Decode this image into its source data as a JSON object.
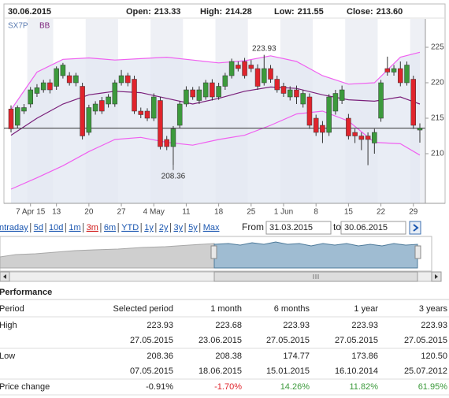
{
  "chart_data": {
    "type": "candlestick",
    "name": "SX7P",
    "x": [
      "2015-03-31",
      "2015-04-01",
      "2015-04-02",
      "2015-04-07",
      "2015-04-08",
      "2015-04-09",
      "2015-04-10",
      "2015-04-13",
      "2015-04-14",
      "2015-04-15",
      "2015-04-16",
      "2015-04-17",
      "2015-04-20",
      "2015-04-21",
      "2015-04-22",
      "2015-04-23",
      "2015-04-24",
      "2015-04-27",
      "2015-04-28",
      "2015-04-29",
      "2015-04-30",
      "2015-05-01",
      "2015-05-04",
      "2015-05-05",
      "2015-05-06",
      "2015-05-07",
      "2015-05-08",
      "2015-05-11",
      "2015-05-12",
      "2015-05-13",
      "2015-05-14",
      "2015-05-15",
      "2015-05-18",
      "2015-05-19",
      "2015-05-20",
      "2015-05-21",
      "2015-05-22",
      "2015-05-25",
      "2015-05-26",
      "2015-05-27",
      "2015-05-28",
      "2015-05-29",
      "2015-06-01",
      "2015-06-02",
      "2015-06-03",
      "2015-06-04",
      "2015-06-05",
      "2015-06-08",
      "2015-06-09",
      "2015-06-10",
      "2015-06-11",
      "2015-06-12",
      "2015-06-15",
      "2015-06-16",
      "2015-06-17",
      "2015-06-18",
      "2015-06-19",
      "2015-06-22",
      "2015-06-23",
      "2015-06-24",
      "2015-06-25",
      "2015-06-26",
      "2015-06-29",
      "2015-06-30"
    ],
    "open": [
      216.3,
      214.0,
      216.0,
      217.0,
      218.5,
      219.0,
      220.0,
      219.5,
      221.0,
      221.0,
      220.0,
      219.5,
      213.0,
      216.0,
      217.5,
      217.0,
      217.0,
      220.0,
      221.0,
      220.5,
      216.0,
      216.0,
      215.0,
      217.5,
      212.0,
      211.0,
      214.0,
      217.0,
      219.0,
      217.5,
      218.0,
      220.0,
      218.0,
      219.5,
      221.0,
      222.5,
      223.0,
      222.5,
      222.0,
      220.0,
      222.0,
      220.5,
      219.5,
      218.0,
      219.0,
      217.0,
      218.0,
      215.0,
      214.0,
      213.0,
      216.0,
      217.5,
      215.0,
      213.0,
      212.5,
      212.5,
      211.5,
      215.0,
      222.0,
      221.5,
      222.0,
      220.0,
      220.5,
      213.33
    ],
    "high": [
      216.8,
      216.8,
      217.0,
      219.4,
      219.8,
      220.4,
      220.5,
      222.3,
      222.8,
      221.5,
      221.4,
      220.0,
      216.9,
      217.4,
      218.0,
      218.4,
      220.4,
      221.8,
      221.4,
      221.0,
      216.5,
      216.4,
      218.5,
      218.0,
      212.5,
      213.9,
      217.4,
      219.5,
      219.4,
      219.5,
      220.4,
      220.5,
      220.0,
      221.4,
      223.4,
      223.0,
      223.5,
      223.2,
      222.6,
      223.93,
      222.5,
      221.0,
      220.0,
      219.5,
      219.6,
      219.0,
      218.5,
      215.5,
      214.6,
      218.4,
      219.0,
      219.6,
      215.6,
      213.5,
      213.0,
      213.0,
      213.5,
      220.4,
      223.68,
      222.5,
      223.0,
      223.0,
      221.0,
      214.28
    ],
    "low": [
      213.0,
      213.6,
      215.6,
      216.5,
      218.0,
      218.6,
      218.5,
      219.0,
      220.6,
      219.6,
      219.5,
      212.0,
      212.6,
      215.5,
      215.6,
      216.5,
      216.6,
      219.6,
      219.5,
      215.6,
      215.0,
      214.6,
      214.6,
      210.6,
      210.5,
      208.36,
      213.6,
      216.6,
      217.6,
      217.0,
      217.6,
      217.5,
      217.6,
      219.0,
      220.6,
      221.6,
      220.6,
      221.5,
      219.0,
      219.6,
      220.0,
      218.6,
      218.0,
      217.5,
      217.0,
      216.5,
      213.5,
      212.5,
      211.5,
      212.5,
      215.5,
      217.0,
      212.0,
      211.5,
      210.5,
      208.38,
      210.0,
      214.5,
      221.0,
      221.0,
      219.5,
      219.6,
      213.5,
      211.55
    ],
    "close": [
      213.5,
      216.5,
      216.5,
      219.0,
      219.3,
      220.0,
      219.0,
      222.0,
      222.5,
      220.0,
      221.0,
      212.5,
      216.5,
      217.0,
      216.0,
      218.0,
      220.0,
      221.0,
      220.0,
      216.0,
      215.5,
      215.0,
      218.0,
      211.0,
      211.0,
      213.5,
      217.0,
      219.0,
      218.0,
      219.0,
      220.0,
      218.0,
      219.5,
      221.0,
      223.0,
      222.0,
      221.0,
      222.0,
      219.5,
      222.0,
      220.5,
      219.0,
      218.5,
      219.0,
      218.0,
      218.5,
      214.0,
      213.0,
      213.0,
      218.0,
      218.5,
      219.0,
      212.5,
      212.5,
      212.0,
      212.0,
      213.0,
      220.0,
      221.5,
      222.0,
      220.0,
      222.5,
      214.0,
      213.6
    ],
    "up_color": "#3c9a3c",
    "down_color": "#e0242c",
    "ylim": [
      203,
      229
    ],
    "yticks": [
      210,
      215,
      220,
      225
    ],
    "xticks": [
      {
        "value": "2015-04-07",
        "label": "7 Apr 15"
      },
      {
        "value": "2015-04-13",
        "label": "13"
      },
      {
        "value": "2015-04-20",
        "label": "20"
      },
      {
        "value": "2015-04-27",
        "label": "27"
      },
      {
        "value": "2015-05-04",
        "label": "4 May"
      },
      {
        "value": "2015-05-11",
        "label": "11"
      },
      {
        "value": "2015-05-18",
        "label": "18"
      },
      {
        "value": "2015-05-25",
        "label": "25"
      },
      {
        "value": "2015-06-01",
        "label": "1 Jun"
      },
      {
        "value": "2015-06-08",
        "label": "8"
      },
      {
        "value": "2015-06-15",
        "label": "15"
      },
      {
        "value": "2015-06-22",
        "label": "22"
      },
      {
        "value": "2015-06-29",
        "label": "29"
      }
    ],
    "bollinger": {
      "name": "BB",
      "band_color": "#f060f0",
      "middle_color": "#7a1f7a",
      "fill": "#e4e8f3",
      "x": [
        "2015-03-31",
        "2015-04-08",
        "2015-04-14",
        "2015-04-20",
        "2015-04-24",
        "2015-04-30",
        "2015-05-06",
        "2015-05-12",
        "2015-05-18",
        "2015-05-22",
        "2015-05-28",
        "2015-06-03",
        "2015-06-09",
        "2015-06-15",
        "2015-06-19",
        "2015-06-25",
        "2015-06-30"
      ],
      "upper": [
        216.2,
        221.5,
        223.3,
        223.5,
        223.2,
        223.4,
        223.6,
        223.2,
        222.8,
        223.1,
        223.8,
        223.0,
        221.0,
        219.8,
        220.0,
        223.6,
        224.3
      ],
      "middle": [
        212.6,
        215.0,
        217.0,
        218.3,
        218.8,
        218.6,
        217.8,
        217.0,
        217.8,
        218.8,
        219.4,
        219.2,
        218.3,
        217.6,
        217.4,
        218.0,
        217.0
      ],
      "lower": [
        205.0,
        206.6,
        208.3,
        210.3,
        212.0,
        212.3,
        211.6,
        211.2,
        212.0,
        212.6,
        214.0,
        215.6,
        216.0,
        214.6,
        211.6,
        211.4,
        209.8
      ]
    },
    "annotations": [
      {
        "text": "223.93",
        "x": "2015-05-27",
        "anchor": "high"
      },
      {
        "text": "208.36",
        "x": "2015-05-07",
        "anchor": "low"
      }
    ],
    "last_close_line": true
  },
  "header": {
    "date": "30.06.2015",
    "quotes": [
      {
        "label": "Open:",
        "value": "213.33"
      },
      {
        "label": "High:",
        "value": "214.28"
      },
      {
        "label": "Low:",
        "value": "211.55"
      },
      {
        "label": "Close:",
        "value": "213.60"
      }
    ]
  },
  "controls": {
    "periods": [
      "Intraday",
      "5d",
      "10d",
      "1m",
      "3m",
      "6m",
      "YTD",
      "1y",
      "2y",
      "3y",
      "5y",
      "Max"
    ],
    "selected": "3m",
    "from_label": "From",
    "from": "31.03.2015",
    "to_label": "to",
    "to": "30.06.2015"
  },
  "performance": {
    "title": "Performance",
    "header": [
      "Period",
      "Selected period",
      "1 month",
      "6 months",
      "1 year",
      "3 years"
    ],
    "rows": [
      [
        "High",
        "223.93",
        "223.68",
        "223.93",
        "223.93",
        "223.93"
      ],
      [
        null,
        "27.05.2015",
        "23.06.2015",
        "27.05.2015",
        "27.05.2015",
        "27.05.2015"
      ],
      [
        "Low",
        "208.36",
        "208.38",
        "174.77",
        "173.86",
        "120.50"
      ],
      [
        null,
        "07.05.2015",
        "18.06.2015",
        "15.01.2015",
        "16.10.2014",
        "25.07.2012"
      ],
      [
        "Price change",
        "-0.91%",
        "-1.70%",
        "14.26%",
        "11.82%",
        "61.95%"
      ]
    ],
    "change_colors": [
      "#222222",
      "#e0242c",
      "#3c9a3c",
      "#3c9a3c",
      "#3c9a3c"
    ]
  }
}
